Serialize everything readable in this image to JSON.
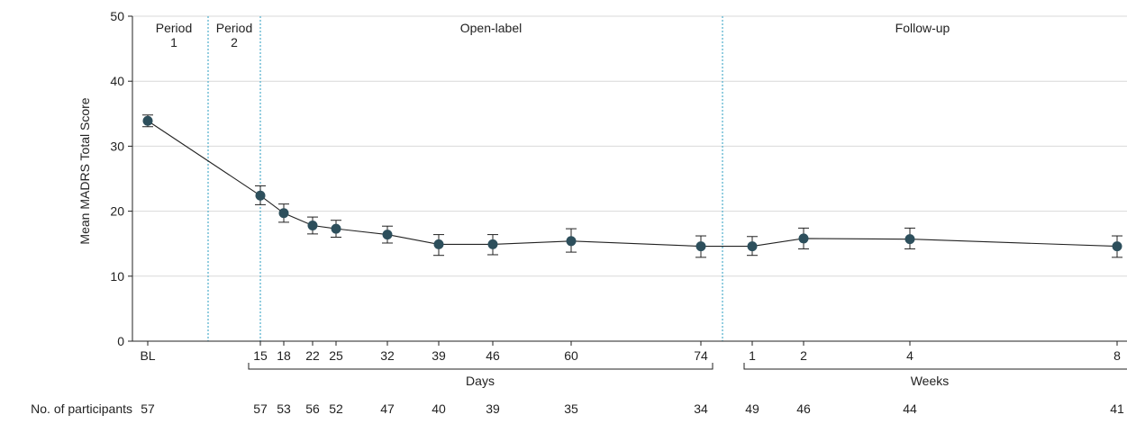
{
  "chart_data": {
    "type": "line",
    "ylabel": "Mean MADRS Total Score",
    "ylim": [
      0,
      50
    ],
    "yticks": [
      0,
      10,
      20,
      30,
      40,
      50
    ],
    "grid": true,
    "phases": [
      {
        "lines": [
          "Period",
          "1"
        ]
      },
      {
        "lines": [
          "Period",
          "2"
        ]
      },
      {
        "lines": [
          "Open-label"
        ]
      },
      {
        "lines": [
          "Follow-up"
        ]
      }
    ],
    "x_tick_labels": [
      "BL",
      "15",
      "18",
      "22",
      "25",
      "32",
      "39",
      "46",
      "60",
      "74",
      "1",
      "2",
      "4",
      "8"
    ],
    "axis_group_labels": {
      "days": "Days",
      "weeks": "Weeks"
    },
    "participants_label": "No. of participants",
    "participants": [
      57,
      57,
      53,
      56,
      52,
      47,
      40,
      39,
      35,
      34,
      49,
      46,
      44,
      41
    ],
    "series": [
      {
        "values": [
          33.9,
          22.4,
          19.7,
          17.8,
          17.3,
          16.4,
          14.9,
          14.9,
          15.4,
          14.6,
          14.6,
          15.8,
          15.7,
          14.6
        ],
        "error_low": [
          33.0,
          21.0,
          18.3,
          16.5,
          16.0,
          15.1,
          13.2,
          13.3,
          13.7,
          12.9,
          13.2,
          14.2,
          14.2,
          12.9
        ],
        "error_high": [
          34.8,
          23.9,
          21.1,
          19.1,
          18.6,
          17.7,
          16.4,
          16.4,
          17.3,
          16.2,
          16.1,
          17.4,
          17.4,
          16.2
        ]
      }
    ]
  }
}
